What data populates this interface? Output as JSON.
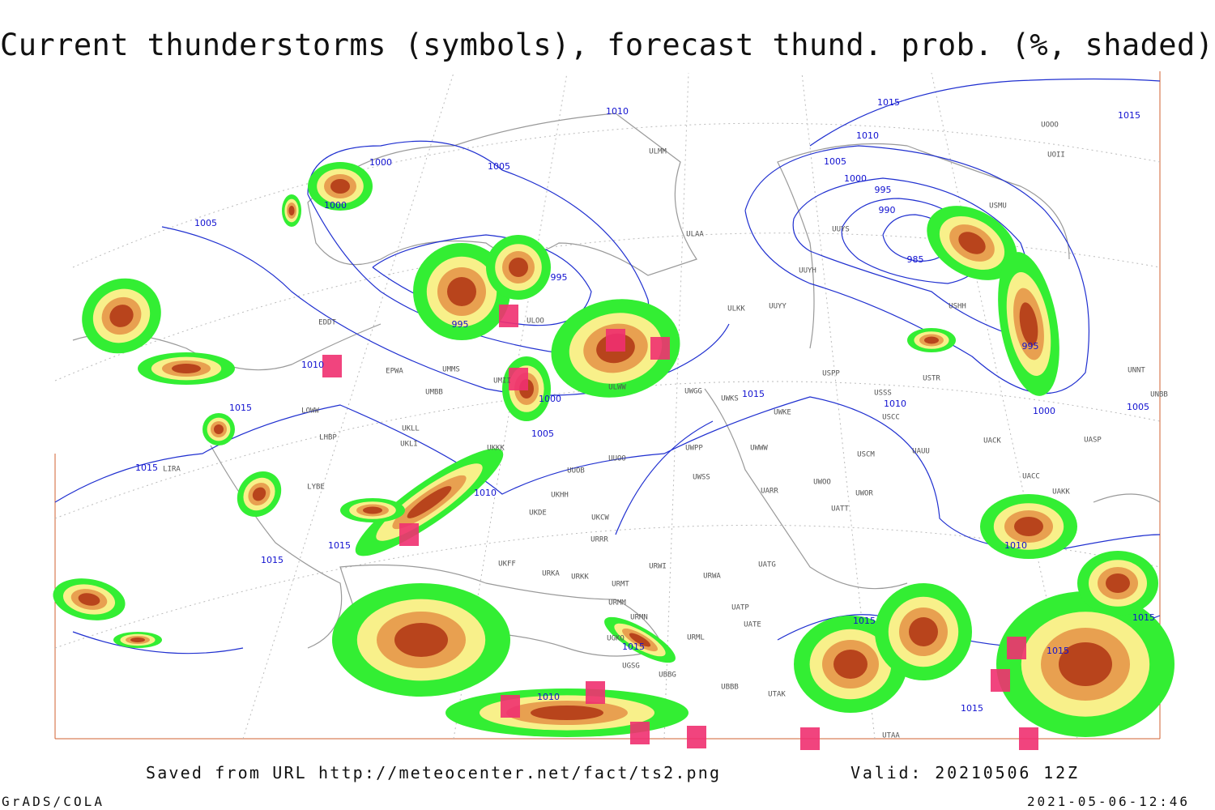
{
  "header": {
    "title": "Current thunderstorms (symbols), forecast thund. prob. (%, shaded)"
  },
  "footer": {
    "saved": "Saved from URL http://meteocenter.net/fact/ts2.png",
    "valid": "Valid: 20210506 12Z",
    "software": "GrADS/COLA",
    "timestamp": "2021-05-06-12:46"
  },
  "isobar_labels": [
    "1010",
    "1015",
    "1015",
    "1010",
    "1000",
    "1005",
    "1005",
    "1000",
    "995",
    "990",
    "985",
    "1000",
    "1005",
    "995",
    "995",
    "1010",
    "995",
    "1000",
    "1015",
    "1010",
    "1000",
    "1005",
    "1015",
    "1005",
    "1015",
    "1010",
    "1015",
    "1015",
    "1010",
    "1015",
    "1015",
    "1015",
    "1015",
    "1010",
    "1015"
  ],
  "stations": [
    "ULMM",
    "ULAA",
    "UUYH",
    "ULKK",
    "UUYY",
    "UUYS",
    "USSS",
    "USCC",
    "USPP",
    "USTR",
    "USHH",
    "UWKS",
    "UWKE",
    "UWWW",
    "UWPP",
    "UWSS",
    "UARR",
    "UWOO",
    "UWOR",
    "UATT",
    "USCM",
    "UAUU",
    "UACK",
    "UASP",
    "UAKK",
    "UACC",
    "UATG",
    "URWA",
    "URWI",
    "URMT",
    "URMM",
    "URMN",
    "URML",
    "UBBB",
    "UTAK",
    "UATE",
    "UATP",
    "UMMS",
    "UMBB",
    "UMII",
    "EPWA",
    "UKLL",
    "UKLI",
    "UKKK",
    "UUOB",
    "UUOO",
    "UKHH",
    "UKDE",
    "UKCW",
    "URRR",
    "UKFF",
    "URKA",
    "URKK",
    "UGKO",
    "UGSG",
    "UBBG",
    "UTAA",
    "LOWW",
    "LHBP",
    "LYBE",
    "LIRA",
    "EDDT",
    "UWGG",
    "UOOO",
    "UOII",
    "USMU",
    "UNNT",
    "UNBB",
    "ULWW",
    "ULOO"
  ]
}
